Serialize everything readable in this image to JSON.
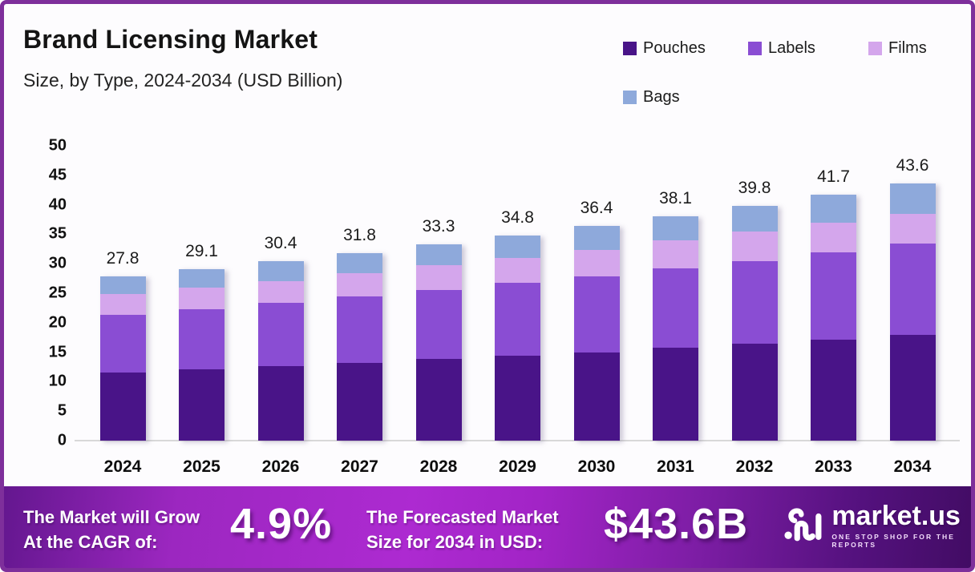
{
  "header": {
    "title": "Brand Licensing Market",
    "subtitle": "Size, by Type, 2024-2034 (USD Billion)"
  },
  "chart_data": {
    "type": "bar",
    "stacked": true,
    "title": "Brand Licensing Market Size, by Type, 2024-2034 (USD Billion)",
    "xlabel": "",
    "ylabel": "USD Billion",
    "ylim": [
      0,
      50
    ],
    "ytick_step": 5,
    "grid": false,
    "legend_position": "top-right",
    "categories": [
      "2024",
      "2025",
      "2026",
      "2027",
      "2028",
      "2029",
      "2030",
      "2031",
      "2032",
      "2033",
      "2034"
    ],
    "series": [
      {
        "name": "Pouches",
        "color": "#491488",
        "values": [
          11.6,
          12.1,
          12.6,
          13.2,
          13.8,
          14.4,
          15.0,
          15.7,
          16.4,
          17.1,
          17.9
        ]
      },
      {
        "name": "Labels",
        "color": "#8a4dd3",
        "values": [
          9.7,
          10.2,
          10.7,
          11.2,
          11.7,
          12.3,
          12.9,
          13.5,
          14.1,
          14.8,
          15.5
        ]
      },
      {
        "name": "Films",
        "color": "#d4a6ec",
        "values": [
          3.6,
          3.7,
          3.8,
          4.0,
          4.2,
          4.3,
          4.5,
          4.7,
          4.9,
          5.0,
          5.1
        ]
      },
      {
        "name": "Bags",
        "color": "#8ea9db",
        "values": [
          2.9,
          3.1,
          3.3,
          3.4,
          3.6,
          3.8,
          4.0,
          4.2,
          4.4,
          4.8,
          5.1
        ]
      }
    ],
    "totals": [
      27.8,
      29.1,
      30.4,
      31.8,
      33.3,
      34.8,
      36.4,
      38.1,
      39.8,
      41.7,
      43.6
    ]
  },
  "footer": {
    "cagr_label_line1": "The Market will Grow",
    "cagr_label_line2": "At the CAGR of:",
    "cagr_value": "4.9%",
    "forecast_label_line1": "The Forecasted Market",
    "forecast_label_line2": "Size for 2034 in USD:",
    "forecast_value": "$43.6B",
    "brand": {
      "name": "market.us",
      "tagline": "ONE STOP SHOP FOR THE REPORTS"
    }
  },
  "colors": {
    "page_border": "#7e2f9b",
    "axis_line": "#d8d8d8",
    "text": "#1a1a1a",
    "footer_gradient_start": "#9c27c0",
    "footer_gradient_end": "#420c64"
  }
}
